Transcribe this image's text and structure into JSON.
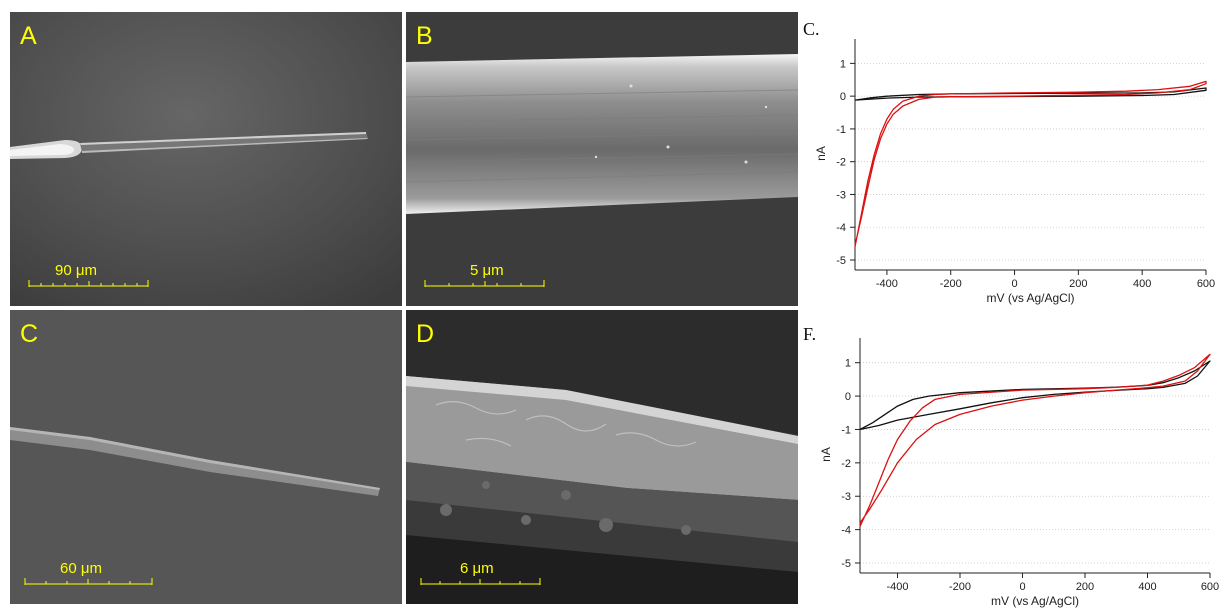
{
  "panels": {
    "a": {
      "letter": "A",
      "scale": "90 μm"
    },
    "b": {
      "letter": "B",
      "scale": "5 μm"
    },
    "c": {
      "letter": "C",
      "scale": "60 μm"
    },
    "d": {
      "letter": "D",
      "scale": "6 μm"
    }
  },
  "colors": {
    "bare": "#111111",
    "coated": "#dd1111",
    "label_yellow": "#ffff00"
  },
  "chart_data": [
    {
      "type": "line",
      "panel_label": "C.",
      "xlabel": "mV (vs Ag/AgCl)",
      "ylabel": "nA",
      "xlim": [
        -500,
        600
      ],
      "ylim": [
        -5,
        1.5
      ],
      "xticks": [
        -400,
        -200,
        0,
        200,
        400,
        600
      ],
      "yticks": [
        -5,
        -4,
        -3,
        -2,
        -1,
        0,
        1
      ],
      "grid": "horizontal dotted",
      "series": [
        {
          "color": "#111111",
          "forward": [
            [
              -500,
              -0.12
            ],
            [
              -450,
              -0.05
            ],
            [
              -400,
              0.0
            ],
            [
              -300,
              0.05
            ],
            [
              -200,
              0.07
            ],
            [
              0,
              0.08
            ],
            [
              200,
              0.09
            ],
            [
              400,
              0.1
            ],
            [
              500,
              0.13
            ],
            [
              600,
              0.25
            ]
          ],
          "reverse": [
            [
              600,
              0.18
            ],
            [
              500,
              0.05
            ],
            [
              400,
              0.02
            ],
            [
              200,
              0.0
            ],
            [
              0,
              -0.01
            ],
            [
              -200,
              -0.02
            ],
            [
              -300,
              -0.03
            ],
            [
              -400,
              -0.06
            ],
            [
              -450,
              -0.09
            ],
            [
              -500,
              -0.12
            ]
          ]
        },
        {
          "color": "#dd1111",
          "forward": [
            [
              -500,
              -4.6
            ],
            [
              -480,
              -3.6
            ],
            [
              -460,
              -2.6
            ],
            [
              -440,
              -1.8
            ],
            [
              -420,
              -1.15
            ],
            [
              -400,
              -0.7
            ],
            [
              -380,
              -0.4
            ],
            [
              -350,
              -0.15
            ],
            [
              -300,
              0.0
            ],
            [
              -250,
              0.05
            ],
            [
              -200,
              0.07
            ],
            [
              0,
              0.1
            ],
            [
              200,
              0.12
            ],
            [
              350,
              0.15
            ],
            [
              450,
              0.2
            ],
            [
              550,
              0.3
            ],
            [
              600,
              0.45
            ]
          ],
          "reverse": [
            [
              600,
              0.38
            ],
            [
              550,
              0.2
            ],
            [
              450,
              0.1
            ],
            [
              350,
              0.05
            ],
            [
              200,
              0.03
            ],
            [
              0,
              0.0
            ],
            [
              -200,
              -0.02
            ],
            [
              -250,
              -0.03
            ],
            [
              -300,
              -0.1
            ],
            [
              -350,
              -0.3
            ],
            [
              -380,
              -0.55
            ],
            [
              -400,
              -0.85
            ],
            [
              -420,
              -1.3
            ],
            [
              -440,
              -1.95
            ],
            [
              -460,
              -2.8
            ],
            [
              -480,
              -3.7
            ],
            [
              -500,
              -4.55
            ]
          ]
        }
      ]
    },
    {
      "type": "line",
      "panel_label": "F.",
      "xlabel": "mV (vs Ag/AgCl)",
      "ylabel": "nA",
      "xlim": [
        -520,
        600
      ],
      "ylim": [
        -5,
        1.5
      ],
      "xticks": [
        -400,
        -200,
        0,
        200,
        400,
        600
      ],
      "yticks": [
        -5,
        -4,
        -3,
        -2,
        -1,
        0,
        1
      ],
      "grid": "horizontal dotted",
      "series": [
        {
          "color": "#111111",
          "forward": [
            [
              -520,
              -1.0
            ],
            [
              -480,
              -0.8
            ],
            [
              -440,
              -0.55
            ],
            [
              -400,
              -0.3
            ],
            [
              -350,
              -0.1
            ],
            [
              -300,
              0.0
            ],
            [
              -200,
              0.1
            ],
            [
              0,
              0.2
            ],
            [
              200,
              0.24
            ],
            [
              300,
              0.27
            ],
            [
              400,
              0.32
            ],
            [
              450,
              0.4
            ],
            [
              500,
              0.55
            ],
            [
              550,
              0.75
            ],
            [
              600,
              1.05
            ]
          ],
          "reverse": [
            [
              600,
              1.05
            ],
            [
              560,
              0.6
            ],
            [
              520,
              0.38
            ],
            [
              450,
              0.26
            ],
            [
              400,
              0.22
            ],
            [
              300,
              0.17
            ],
            [
              200,
              0.12
            ],
            [
              100,
              0.05
            ],
            [
              0,
              -0.05
            ],
            [
              -100,
              -0.2
            ],
            [
              -200,
              -0.38
            ],
            [
              -300,
              -0.55
            ],
            [
              -400,
              -0.72
            ],
            [
              -460,
              -0.88
            ],
            [
              -520,
              -1.0
            ]
          ]
        },
        {
          "color": "#dd1111",
          "forward": [
            [
              -520,
              -3.9
            ],
            [
              -490,
              -3.3
            ],
            [
              -460,
              -2.6
            ],
            [
              -430,
              -1.9
            ],
            [
              -400,
              -1.3
            ],
            [
              -360,
              -0.75
            ],
            [
              -320,
              -0.35
            ],
            [
              -280,
              -0.1
            ],
            [
              -200,
              0.05
            ],
            [
              0,
              0.18
            ],
            [
              200,
              0.22
            ],
            [
              300,
              0.26
            ],
            [
              400,
              0.33
            ],
            [
              450,
              0.45
            ],
            [
              500,
              0.62
            ],
            [
              550,
              0.85
            ],
            [
              600,
              1.25
            ]
          ],
          "reverse": [
            [
              600,
              1.25
            ],
            [
              560,
              0.75
            ],
            [
              520,
              0.45
            ],
            [
              450,
              0.3
            ],
            [
              400,
              0.25
            ],
            [
              300,
              0.18
            ],
            [
              200,
              0.1
            ],
            [
              100,
              0.0
            ],
            [
              0,
              -0.12
            ],
            [
              -100,
              -0.3
            ],
            [
              -200,
              -0.55
            ],
            [
              -280,
              -0.85
            ],
            [
              -340,
              -1.3
            ],
            [
              -400,
              -2.0
            ],
            [
              -450,
              -2.8
            ],
            [
              -490,
              -3.4
            ],
            [
              -520,
              -3.8
            ]
          ]
        }
      ]
    }
  ]
}
